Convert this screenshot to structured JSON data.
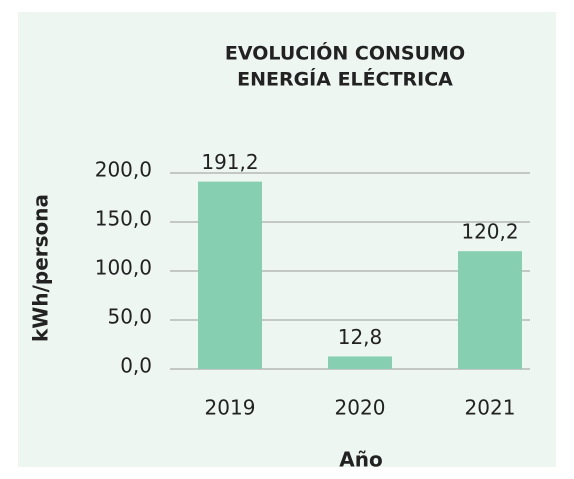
{
  "chart_data": {
    "type": "bar",
    "title": [
      "EVOLUCIÓN CONSUMO",
      "ENERGÍA ELÉCTRICA"
    ],
    "xlabel": "Año",
    "ylabel": "kWh/persona",
    "categories": [
      "2019",
      "2020",
      "2021"
    ],
    "values": [
      191.2,
      12.8,
      120.2
    ],
    "value_labels": [
      "191,2",
      "12,8",
      "120,2"
    ],
    "color": "#86cfb0",
    "ylim": [
      0,
      200
    ],
    "yticks": [
      {
        "value": 0,
        "label": "0,0"
      },
      {
        "value": 50,
        "label": "50,0"
      },
      {
        "value": 100,
        "label": "100,0"
      },
      {
        "value": 150,
        "label": "150,0"
      },
      {
        "value": 200,
        "label": "200,0"
      }
    ],
    "grid": true
  }
}
